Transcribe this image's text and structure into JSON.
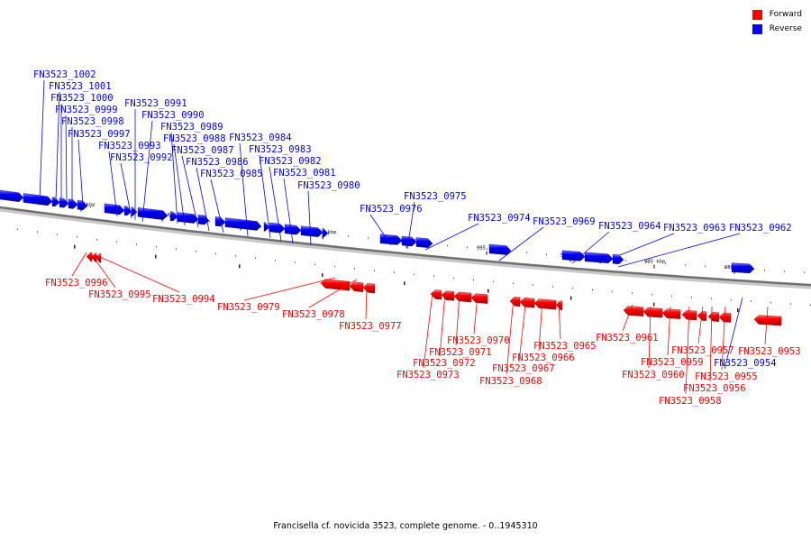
{
  "legend": {
    "forward_label": "Forward",
    "reverse_label": "Reverse",
    "forward_color": "#ff0000",
    "reverse_color": "#0000ff"
  },
  "caption": "Francisella cf. novicida 3523, complete genome. - 0..1945310",
  "scale_ticks": [
    "1020 kbp",
    "1015 kbp",
    "1010 kbp",
    "1005 kbp",
    "1000 kbp",
    "995 kbp",
    "990 kbp",
    "985 kbp",
    "980 kbp"
  ],
  "genes": [
    {
      "name": "FN3523_1002",
      "strand": "reverse"
    },
    {
      "name": "FN3523_1001",
      "strand": "reverse"
    },
    {
      "name": "FN3523_1000",
      "strand": "reverse"
    },
    {
      "name": "FN3523_0999",
      "strand": "reverse"
    },
    {
      "name": "FN3523_0998",
      "strand": "reverse"
    },
    {
      "name": "FN3523_0997",
      "strand": "reverse"
    },
    {
      "name": "FN3523_0996",
      "strand": "forward"
    },
    {
      "name": "FN3523_0995",
      "strand": "forward"
    },
    {
      "name": "FN3523_0994",
      "strand": "forward"
    },
    {
      "name": "FN3523_0993",
      "strand": "reverse"
    },
    {
      "name": "FN3523_0992",
      "strand": "reverse"
    },
    {
      "name": "FN3523_0991",
      "strand": "reverse"
    },
    {
      "name": "FN3523_0990",
      "strand": "reverse"
    },
    {
      "name": "FN3523_0989",
      "strand": "reverse"
    },
    {
      "name": "FN3523_0988",
      "strand": "reverse"
    },
    {
      "name": "FN3523_0987",
      "strand": "reverse"
    },
    {
      "name": "FN3523_0986",
      "strand": "reverse"
    },
    {
      "name": "FN3523_0985",
      "strand": "reverse"
    },
    {
      "name": "FN3523_0984",
      "strand": "reverse"
    },
    {
      "name": "FN3523_0983",
      "strand": "reverse"
    },
    {
      "name": "FN3523_0982",
      "strand": "reverse"
    },
    {
      "name": "FN3523_0981",
      "strand": "reverse"
    },
    {
      "name": "FN3523_0980",
      "strand": "reverse"
    },
    {
      "name": "FN3523_0979",
      "strand": "forward"
    },
    {
      "name": "FN3523_0978",
      "strand": "forward"
    },
    {
      "name": "FN3523_0977",
      "strand": "forward"
    },
    {
      "name": "FN3523_0976",
      "strand": "reverse"
    },
    {
      "name": "FN3523_0975",
      "strand": "reverse"
    },
    {
      "name": "FN3523_0974",
      "strand": "reverse"
    },
    {
      "name": "FN3523_0973",
      "strand": "forward"
    },
    {
      "name": "FN3523_0972",
      "strand": "forward"
    },
    {
      "name": "FN3523_0971",
      "strand": "forward"
    },
    {
      "name": "FN3523_0970",
      "strand": "forward"
    },
    {
      "name": "FN3523_0969",
      "strand": "reverse"
    },
    {
      "name": "FN3523_0968",
      "strand": "forward"
    },
    {
      "name": "FN3523_0967",
      "strand": "forward"
    },
    {
      "name": "FN3523_0966",
      "strand": "forward"
    },
    {
      "name": "FN3523_0965",
      "strand": "forward"
    },
    {
      "name": "FN3523_0964",
      "strand": "reverse"
    },
    {
      "name": "FN3523_0963",
      "strand": "reverse"
    },
    {
      "name": "FN3523_0962",
      "strand": "reverse"
    },
    {
      "name": "FN3523_0961",
      "strand": "forward"
    },
    {
      "name": "FN3523_0960",
      "strand": "forward"
    },
    {
      "name": "FN3523_0959",
      "strand": "forward"
    },
    {
      "name": "FN3523_0958",
      "strand": "forward"
    },
    {
      "name": "FN3523_0957",
      "strand": "forward"
    },
    {
      "name": "FN3523_0956",
      "strand": "forward"
    },
    {
      "name": "FN3523_0955",
      "strand": "forward"
    },
    {
      "name": "FN3523_0954",
      "strand": "reverse"
    },
    {
      "name": "FN3523_0953",
      "strand": "forward"
    }
  ]
}
